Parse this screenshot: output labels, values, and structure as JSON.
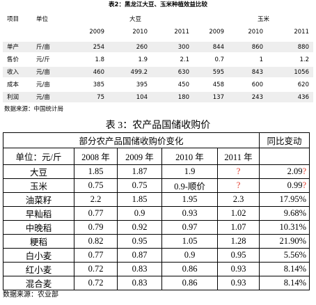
{
  "table1": {
    "title": "表2：黑龙江大豆、玉米种植效益比较",
    "header": [
      "项目",
      "单位",
      "大豆",
      "玉米"
    ],
    "years": [
      "2009",
      "2010",
      "2011",
      "2009",
      "2010",
      "2011"
    ],
    "rows": [
      [
        "单产",
        "斤/亩",
        "254",
        "260",
        "300",
        "844",
        "860",
        "880"
      ],
      [
        "售价",
        "元/斤",
        "1.8",
        "1.9",
        "2.1",
        "0.7",
        "1",
        "1.2"
      ],
      [
        "收入",
        "元/亩",
        "460",
        "499.2",
        "630",
        "595",
        "843",
        "1056"
      ],
      [
        "成本",
        "元/亩",
        "385",
        "395",
        "450",
        "458",
        "600",
        "620"
      ],
      [
        "利润",
        "元/亩",
        "75",
        "104",
        "180",
        "137",
        "243",
        "436"
      ]
    ],
    "source": "数据来源：中国统计局"
  },
  "table2": {
    "title": "表 3：农产品国储收购价",
    "group_header": "部分农产品国储收购价变化",
    "change_header": "同比变动",
    "header": [
      "单位：元/斤",
      "2008 年",
      "2009 年",
      "2010 年",
      "2011 年"
    ],
    "rows": [
      [
        "大豆",
        "1.85",
        "1.87",
        "1.9",
        "?",
        "2.09?"
      ],
      [
        "玉米",
        "0.75",
        "0.75",
        "0.9-顺价",
        "?",
        "0.99?"
      ],
      [
        "油菜籽",
        "2.2",
        "1.85",
        "1.95",
        "2.3",
        "17.95%"
      ],
      [
        "早籼稻",
        "0.77",
        "0.9",
        "0.93",
        "1.02",
        "9.68%"
      ],
      [
        "中晚稻",
        "0.79",
        "0.92",
        "0.97",
        "1.07",
        "10.31%"
      ],
      [
        "粳稻",
        "0.82",
        "0.95",
        "1.05",
        "1.28",
        "21.90%"
      ],
      [
        "白小麦",
        "0.77",
        "0.87",
        "0.9",
        "0.95",
        "5.56%"
      ],
      [
        "红小麦",
        "0.72",
        "0.83",
        "0.86",
        "0.93",
        "8.14%"
      ],
      [
        "混合麦",
        "0.72",
        "0.83",
        "0.86",
        "0.93",
        "8.14%"
      ]
    ],
    "source": "数据来源：农业部"
  }
}
